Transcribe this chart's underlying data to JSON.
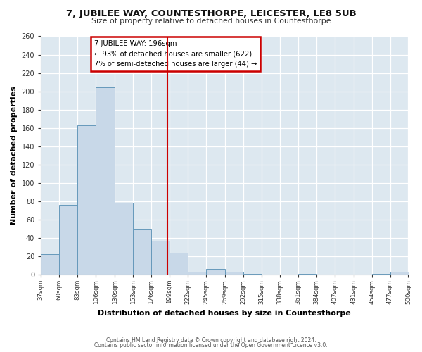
{
  "title": "7, JUBILEE WAY, COUNTESTHORPE, LEICESTER, LE8 5UB",
  "subtitle": "Size of property relative to detached houses in Countesthorpe",
  "xlabel": "Distribution of detached houses by size in Countesthorpe",
  "ylabel": "Number of detached properties",
  "bar_edges": [
    37,
    60,
    83,
    106,
    130,
    153,
    176,
    199,
    222,
    245,
    269,
    292,
    315,
    338,
    361,
    384,
    407,
    431,
    454,
    477,
    500
  ],
  "bar_heights": [
    22,
    76,
    163,
    204,
    78,
    50,
    37,
    24,
    3,
    6,
    3,
    1,
    0,
    0,
    1,
    0,
    0,
    0,
    1,
    3
  ],
  "bar_color": "#c8d8e8",
  "bar_edge_color": "#6699bb",
  "vline_x": 196,
  "vline_color": "#cc0000",
  "annotation_title": "7 JUBILEE WAY: 196sqm",
  "annotation_line1": "← 93% of detached houses are smaller (622)",
  "annotation_line2": "7% of semi-detached houses are larger (44) →",
  "annotation_box_color": "#cc0000",
  "ylim": [
    0,
    260
  ],
  "ytick_step": 20,
  "fig_bg_color": "#ffffff",
  "plot_bg_color": "#dde8f0",
  "grid_color": "#ffffff",
  "footer_line1": "Contains HM Land Registry data © Crown copyright and database right 2024.",
  "footer_line2": "Contains public sector information licensed under the Open Government Licence v3.0."
}
